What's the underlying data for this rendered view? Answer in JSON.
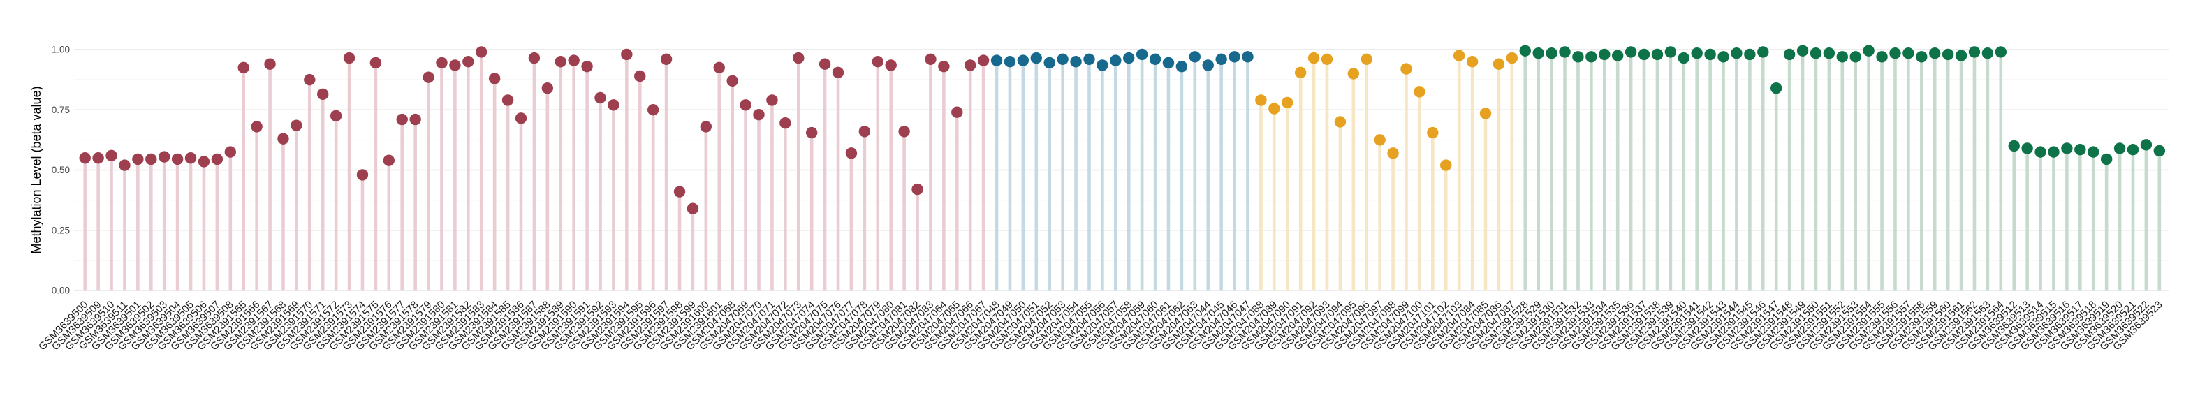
{
  "page": {
    "background": "#ffffff"
  },
  "chart_data": {
    "type": "lollipop",
    "title": "",
    "xlabel": "",
    "ylabel": "Methylation Level (beta value)",
    "ylim": [
      0,
      1
    ],
    "yticks_labels": [
      "0.00",
      "0.25",
      "0.50",
      "0.75",
      "1.00"
    ],
    "yticks_values": [
      0,
      0.25,
      0.5,
      0.75,
      1.0
    ],
    "minor_gridlines": [
      0.125,
      0.375,
      0.625,
      0.875
    ],
    "grid": true,
    "legend": "none",
    "groups": [
      {
        "name": "group-1-maroon",
        "point_color": "#9e3f50",
        "stem_color": "#e9cdd3",
        "count": 69
      },
      {
        "name": "group-2-blue",
        "point_color": "#17698e",
        "stem_color": "#c5d9e3",
        "count": 20
      },
      {
        "name": "group-3-amber",
        "point_color": "#e5a11f",
        "stem_color": "#f6e6c3",
        "count": 20
      },
      {
        "name": "group-4-green",
        "point_color": "#0f7349",
        "stem_color": "#c6dacd",
        "count": 49
      }
    ],
    "categories": [
      "GSM3639500",
      "GSM3639509",
      "GSM3639510",
      "GSM3639511",
      "GSM3639501",
      "GSM3639502",
      "GSM3639503",
      "GSM3639504",
      "GSM3639505",
      "GSM3639506",
      "GSM3639507",
      "GSM3639508",
      "GSM2391565",
      "GSM2391566",
      "GSM2391567",
      "GSM2391568",
      "GSM2391569",
      "GSM2391570",
      "GSM2391571",
      "GSM2391572",
      "GSM2391573",
      "GSM2391574",
      "GSM2391575",
      "GSM2391576",
      "GSM2391577",
      "GSM2391578",
      "GSM2391579",
      "GSM2391580",
      "GSM2391581",
      "GSM2391582",
      "GSM2391583",
      "GSM2391584",
      "GSM2391585",
      "GSM2391586",
      "GSM2391587",
      "GSM2391588",
      "GSM2391589",
      "GSM2391590",
      "GSM2391591",
      "GSM2391592",
      "GSM2391593",
      "GSM2391594",
      "GSM2391595",
      "GSM2391596",
      "GSM2391597",
      "GSM2391598",
      "GSM2391599",
      "GSM2391600",
      "GSM2391601",
      "GSM2047068",
      "GSM2047069",
      "GSM2047070",
      "GSM2047071",
      "GSM2047072",
      "GSM2047073",
      "GSM2047074",
      "GSM2047075",
      "GSM2047076",
      "GSM2047077",
      "GSM2047078",
      "GSM2047079",
      "GSM2047080",
      "GSM2047081",
      "GSM2047082",
      "GSM2047083",
      "GSM2047064",
      "GSM2047065",
      "GSM2047066",
      "GSM2047067",
      "GSM2047048",
      "GSM2047049",
      "GSM2047050",
      "GSM2047051",
      "GSM2047052",
      "GSM2047053",
      "GSM2047054",
      "GSM2047055",
      "GSM2047056",
      "GSM2047057",
      "GSM2047058",
      "GSM2047059",
      "GSM2047060",
      "GSM2047061",
      "GSM2047062",
      "GSM2047063",
      "GSM2047044",
      "GSM2047045",
      "GSM2047046",
      "GSM2047047",
      "GSM2047088",
      "GSM2047089",
      "GSM2047090",
      "GSM2047091",
      "GSM2047092",
      "GSM2047093",
      "GSM2047094",
      "GSM2047095",
      "GSM2047096",
      "GSM2047097",
      "GSM2047098",
      "GSM2047099",
      "GSM2047100",
      "GSM2047101",
      "GSM2047102",
      "GSM2047103",
      "GSM2047084",
      "GSM2047085",
      "GSM2047086",
      "GSM2047087",
      "GSM2391528",
      "GSM2391529",
      "GSM2391530",
      "GSM2391531",
      "GSM2391532",
      "GSM2391533",
      "GSM2391534",
      "GSM2391535",
      "GSM2391536",
      "GSM2391537",
      "GSM2391538",
      "GSM2391539",
      "GSM2391540",
      "GSM2391541",
      "GSM2391542",
      "GSM2391543",
      "GSM2391544",
      "GSM2391545",
      "GSM2391546",
      "GSM2391547",
      "GSM2391548",
      "GSM2391549",
      "GSM2391550",
      "GSM2391551",
      "GSM2391552",
      "GSM2391553",
      "GSM2391554",
      "GSM2391555",
      "GSM2391556",
      "GSM2391557",
      "GSM2391558",
      "GSM2391559",
      "GSM2391560",
      "GSM2391561",
      "GSM2391562",
      "GSM2391563",
      "GSM2391564",
      "GSM3639512",
      "GSM3639513",
      "GSM3639514",
      "GSM3639515",
      "GSM3639516",
      "GSM3639517",
      "GSM3639518",
      "GSM3639519",
      "GSM3639520",
      "GSM3639521",
      "GSM3639522",
      "GSM3639523"
    ],
    "values": [
      0.55,
      0.55,
      0.56,
      0.52,
      0.545,
      0.545,
      0.555,
      0.545,
      0.55,
      0.535,
      0.545,
      0.575,
      0.925,
      0.68,
      0.94,
      0.63,
      0.685,
      0.875,
      0.815,
      0.725,
      0.965,
      0.48,
      0.945,
      0.54,
      0.71,
      0.71,
      0.885,
      0.945,
      0.935,
      0.95,
      0.99,
      0.88,
      0.79,
      0.715,
      0.965,
      0.84,
      0.95,
      0.955,
      0.93,
      0.8,
      0.77,
      0.98,
      0.89,
      0.75,
      0.96,
      0.41,
      0.34,
      0.68,
      0.925,
      0.87,
      0.77,
      0.73,
      0.79,
      0.695,
      0.965,
      0.655,
      0.94,
      0.905,
      0.57,
      0.66,
      0.95,
      0.935,
      0.66,
      0.42,
      0.96,
      0.93,
      0.74,
      0.935,
      0.955,
      0.955,
      0.95,
      0.955,
      0.965,
      0.945,
      0.96,
      0.95,
      0.96,
      0.935,
      0.955,
      0.965,
      0.98,
      0.96,
      0.945,
      0.93,
      0.97,
      0.935,
      0.96,
      0.97,
      0.97,
      0.79,
      0.755,
      0.78,
      0.905,
      0.965,
      0.96,
      0.7,
      0.9,
      0.96,
      0.625,
      0.57,
      0.92,
      0.825,
      0.655,
      0.52,
      0.975,
      0.95,
      0.735,
      0.94,
      0.965,
      0.995,
      0.985,
      0.985,
      0.99,
      0.97,
      0.97,
      0.98,
      0.975,
      0.99,
      0.98,
      0.98,
      0.99,
      0.965,
      0.985,
      0.98,
      0.97,
      0.985,
      0.98,
      0.99,
      0.84,
      0.98,
      0.995,
      0.985,
      0.985,
      0.97,
      0.97,
      0.995,
      0.97,
      0.985,
      0.985,
      0.97,
      0.985,
      0.98,
      0.975,
      0.99,
      0.985,
      0.99,
      0.6,
      0.59,
      0.575,
      0.575,
      0.59,
      0.585,
      0.575,
      0.545,
      0.59,
      0.585,
      0.605,
      0.58
    ]
  }
}
